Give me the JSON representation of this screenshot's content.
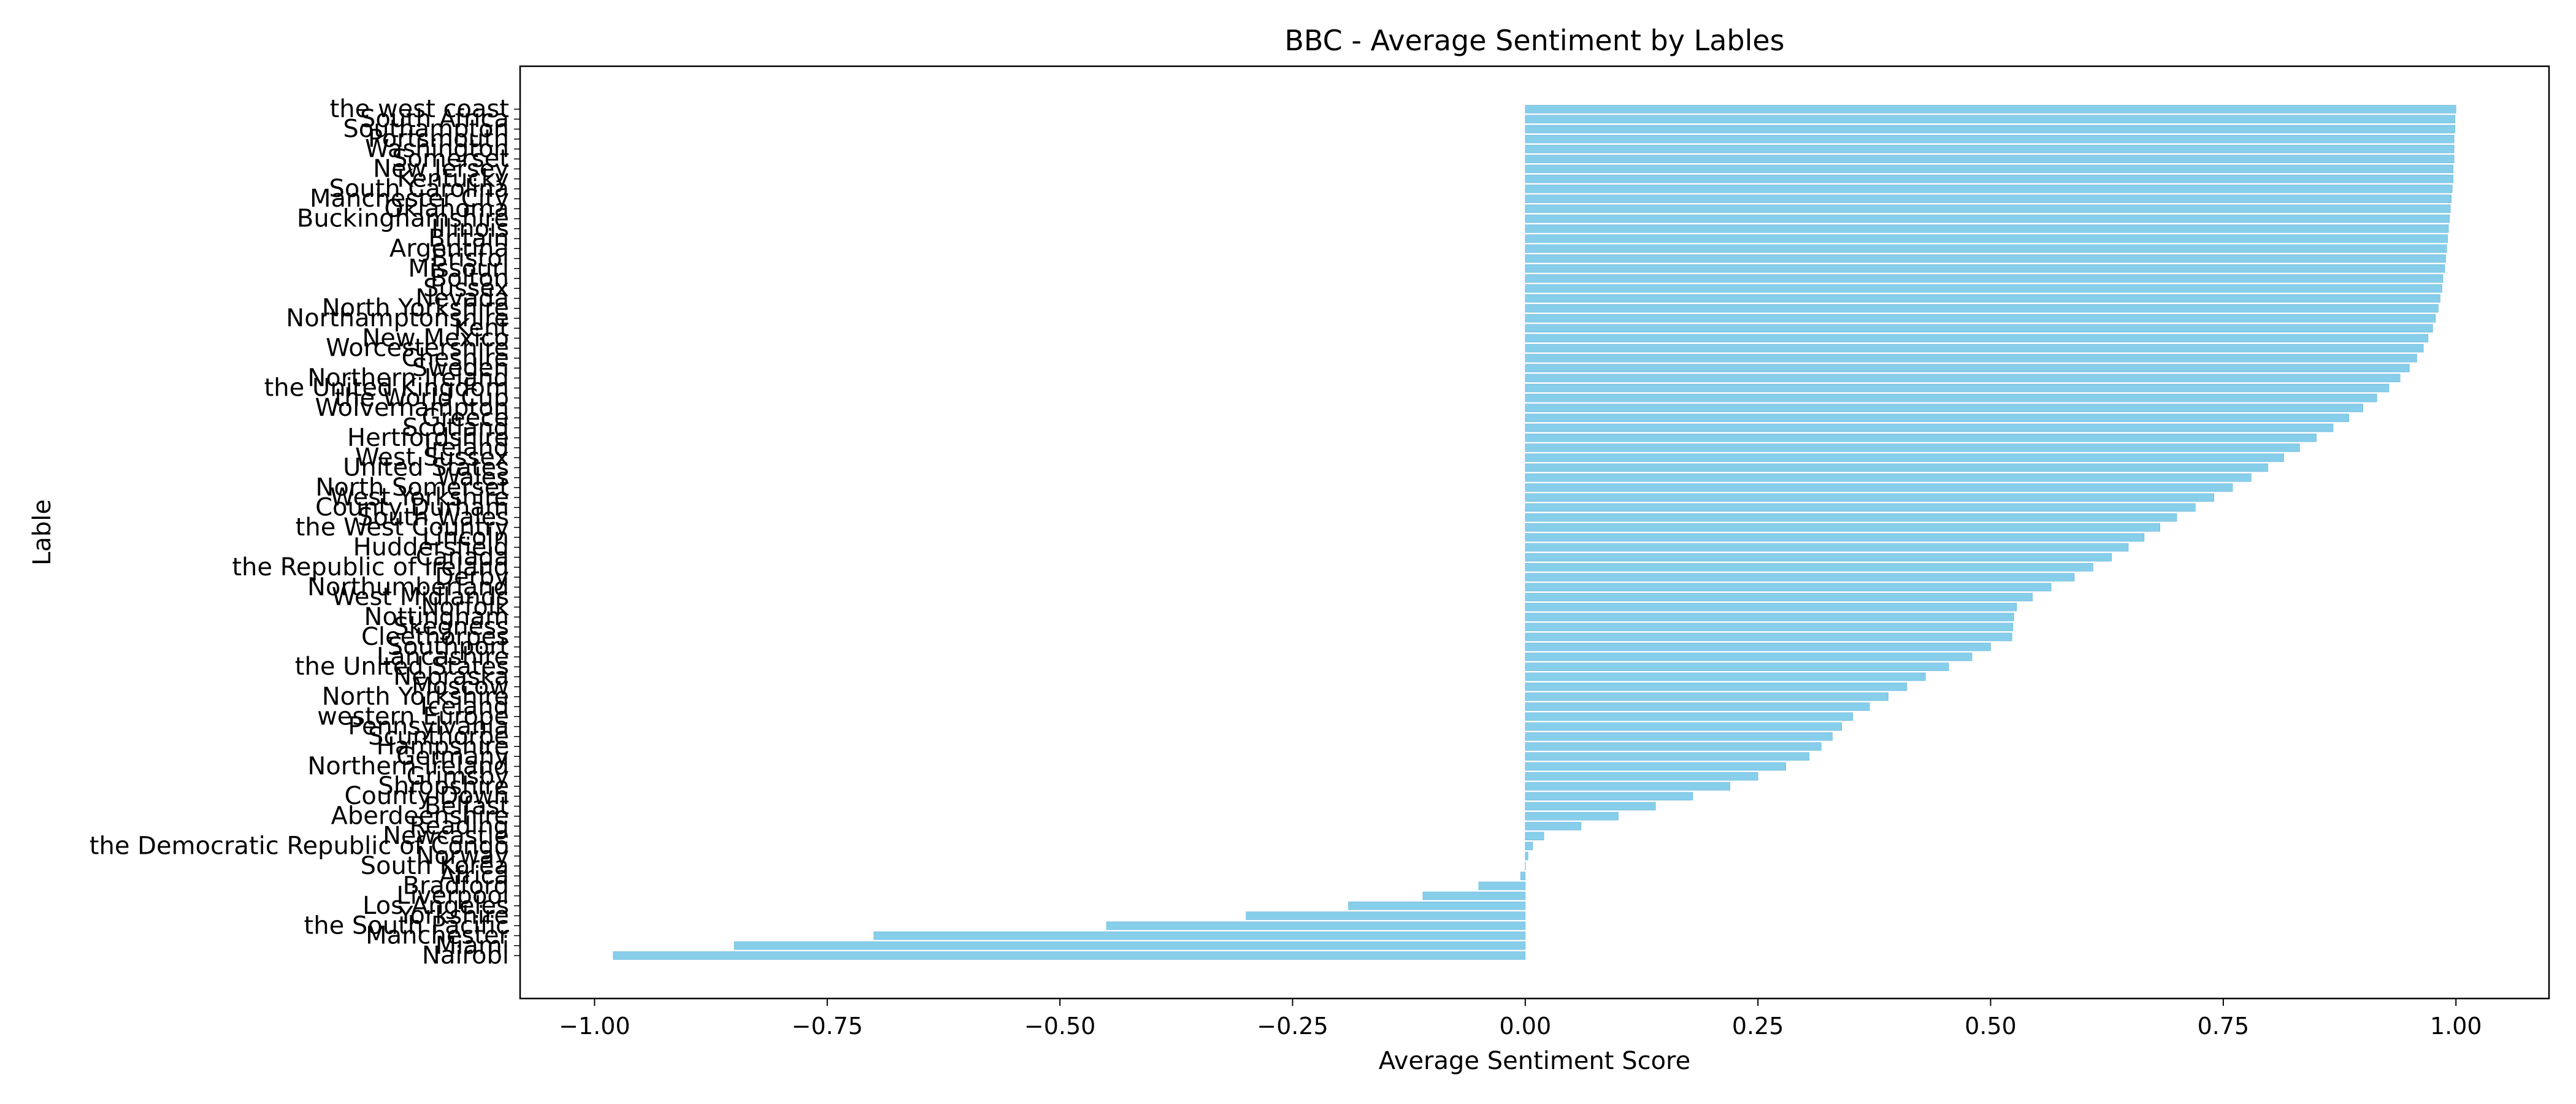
{
  "chart_data": {
    "type": "bar",
    "orientation": "horizontal",
    "title": "BBC - Average Sentiment by Lables",
    "xlabel": "Average Sentiment Score",
    "ylabel": "Lable",
    "xlim": [
      -1.08,
      1.1
    ],
    "xticks": [
      -1.0,
      -0.75,
      -0.5,
      -0.25,
      0.0,
      0.25,
      0.5,
      0.75,
      1.0
    ],
    "xtick_labels": [
      "−1.00",
      "−0.75",
      "−0.50",
      "−0.25",
      "0.00",
      "0.25",
      "0.50",
      "0.75",
      "1.00"
    ],
    "grid": false,
    "bar_color": "#87ceeb",
    "bar_edge_color": "#6ab4d9",
    "categories": [
      "the west coast",
      "South Africa",
      "Southampton",
      "Portsmouth",
      "Washington",
      "Somerset",
      "New Jersey",
      "Kentucky",
      "South Carolina",
      "Manchester City",
      "Oklahoma",
      "Buckinghamshire",
      "Illinois",
      "Britain",
      "Argentina",
      "Bristol",
      "Missouri",
      "Bolton",
      "Sussex",
      "Nevada",
      "North Yorkshire",
      "Northamptonshire",
      "Kent",
      "New Mexico",
      "Worcestershire",
      "Cheshire",
      "Sweden",
      "Northern Ireland",
      "the United Kingdom",
      "the World Cup",
      "Wolverhampton",
      "Greece",
      "Scotland",
      "Hertfordshire",
      "Ireland",
      "West Sussex",
      "United States",
      "Wales",
      "North Somerset",
      "West Yorkshire",
      "County Durham",
      "South Wales",
      "the West Country",
      "Lincoln",
      "Huddersfield",
      "Canada",
      "the Republic of Ireland",
      "Derby",
      "Northumberland",
      "West Midlands",
      "Norfolk",
      "Nottingham",
      "Skegness",
      "Cleethorpes",
      "Southport",
      "Lancashire",
      "the United States",
      "Nebraska",
      "Moscow",
      "North Yorkshire",
      "Iceland",
      "western Europe",
      "Pennsylvania",
      "Scunthorpe",
      "Hampshire",
      "Germany",
      "Northern Ireland",
      "Grimsby",
      "Shropshire",
      "County Down",
      "Belfast",
      "Aberdeenshire",
      "Reading",
      "Newcastle",
      "the Democratic Republic of Congo",
      "Norway",
      "South Korea",
      "Africa",
      "Bradford",
      "Liverpool",
      "Los Angeles",
      "Yorkshire",
      "the South Pacific",
      "Manchester",
      "Miami",
      "Nairobi"
    ],
    "values": [
      1.0,
      0.999,
      0.999,
      0.998,
      0.998,
      0.998,
      0.997,
      0.997,
      0.996,
      0.995,
      0.994,
      0.993,
      0.992,
      0.991,
      0.99,
      0.989,
      0.988,
      0.986,
      0.985,
      0.983,
      0.981,
      0.978,
      0.975,
      0.97,
      0.965,
      0.958,
      0.95,
      0.94,
      0.928,
      0.915,
      0.9,
      0.885,
      0.868,
      0.85,
      0.832,
      0.815,
      0.798,
      0.78,
      0.76,
      0.74,
      0.72,
      0.7,
      0.682,
      0.665,
      0.648,
      0.63,
      0.61,
      0.59,
      0.565,
      0.545,
      0.528,
      0.525,
      0.524,
      0.523,
      0.5,
      0.48,
      0.455,
      0.43,
      0.41,
      0.39,
      0.37,
      0.352,
      0.34,
      0.33,
      0.318,
      0.305,
      0.28,
      0.25,
      0.22,
      0.18,
      0.14,
      0.1,
      0.06,
      0.02,
      0.008,
      0.003,
      0.0,
      -0.005,
      -0.05,
      -0.11,
      -0.19,
      -0.3,
      -0.45,
      -0.7,
      -0.85,
      -0.98
    ]
  }
}
